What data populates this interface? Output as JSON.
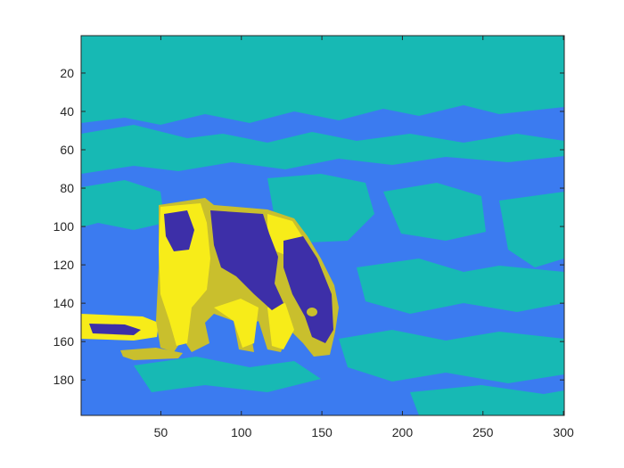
{
  "chart_data": {
    "type": "heatmap",
    "title": "",
    "xlabel": "",
    "ylabel": "",
    "xlim": [
      0.5,
      300.5
    ],
    "ylim": [
      0.5,
      198.5
    ],
    "y_direction": "reverse",
    "x_ticks": [
      50,
      100,
      150,
      200,
      250,
      300
    ],
    "y_ticks": [
      20,
      40,
      60,
      80,
      100,
      120,
      140,
      160,
      180
    ],
    "x_tick_labels": [
      "50",
      "100",
      "150",
      "200",
      "250",
      "300"
    ],
    "y_tick_labels": [
      "20",
      "40",
      "60",
      "80",
      "100",
      "120",
      "140",
      "160",
      "180"
    ],
    "colormap": "parula",
    "cluster_count": 5,
    "cluster_colors": [
      "#3d2fa8",
      "#3b7bf0",
      "#17b9b4",
      "#c9bf2d",
      "#f7ec19"
    ],
    "grid": false,
    "box": true,
    "subject_depicted": "cow grazing in a field (k-means colour segmentation)"
  }
}
